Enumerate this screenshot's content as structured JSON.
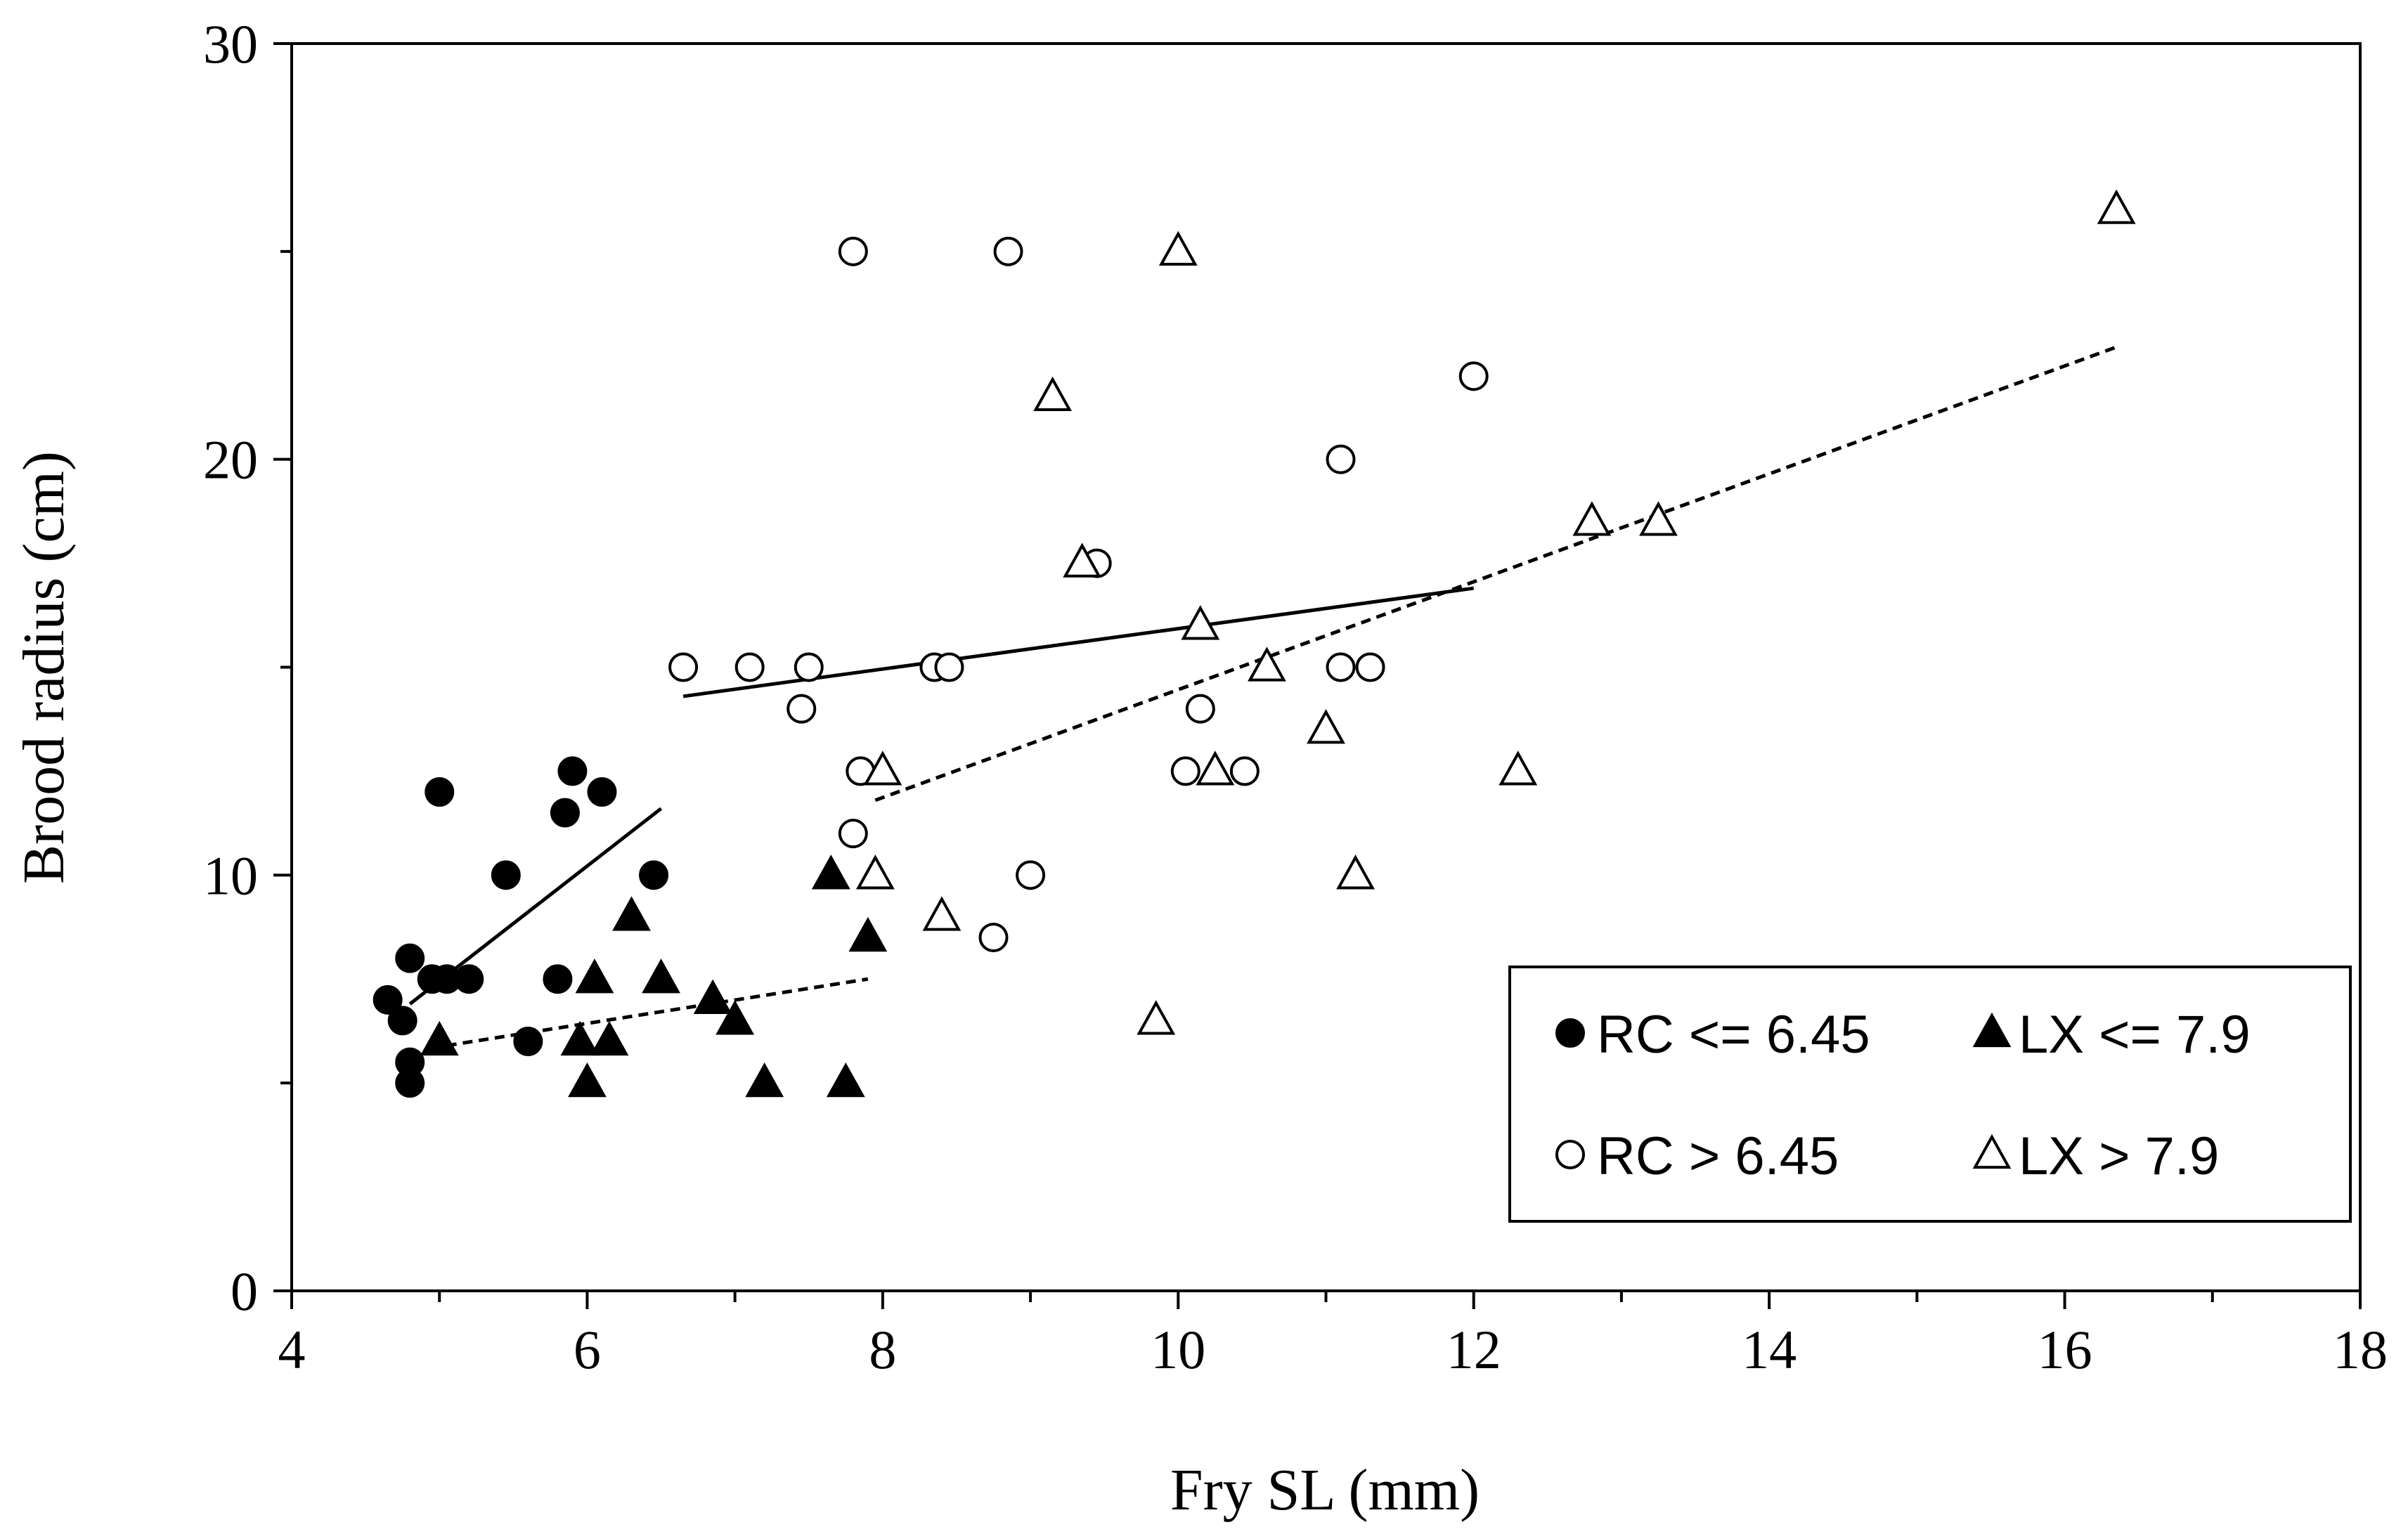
{
  "chart_data": {
    "type": "scatter",
    "title": "",
    "xlabel": "Fry SL (mm)",
    "ylabel": "Brood radius (cm)",
    "xlim": [
      4,
      18
    ],
    "ylim": [
      0,
      30
    ],
    "x_ticks": [
      4,
      6,
      8,
      10,
      12,
      14,
      16,
      18
    ],
    "x_tick_labels": [
      "4",
      "6",
      "8",
      "10",
      "12",
      "14",
      "16",
      "18"
    ],
    "y_ticks": [
      0,
      10,
      20,
      30
    ],
    "y_tick_labels": [
      "0",
      "10",
      "20",
      "30"
    ],
    "grid": false,
    "legend_position": "bottom-right",
    "series": [
      {
        "name": "RC <= 6.45",
        "marker": "circle-filled",
        "points": [
          [
            4.65,
            7
          ],
          [
            4.75,
            6.5
          ],
          [
            4.8,
            8
          ],
          [
            4.8,
            5.5
          ],
          [
            4.8,
            5
          ],
          [
            4.95,
            7.5
          ],
          [
            5.0,
            12
          ],
          [
            5.05,
            7.5
          ],
          [
            5.2,
            7.5
          ],
          [
            5.45,
            10
          ],
          [
            5.6,
            6
          ],
          [
            5.8,
            7.5
          ],
          [
            5.85,
            11.5
          ],
          [
            5.9,
            12.5
          ],
          [
            6.1,
            12
          ],
          [
            6.45,
            10
          ]
        ]
      },
      {
        "name": "LX <= 7.9",
        "marker": "triangle-filled",
        "points": [
          [
            5.0,
            6
          ],
          [
            5.95,
            6
          ],
          [
            6.0,
            5
          ],
          [
            6.05,
            7.5
          ],
          [
            6.15,
            6
          ],
          [
            6.3,
            9
          ],
          [
            6.5,
            7.5
          ],
          [
            6.85,
            7
          ],
          [
            7.0,
            6.5
          ],
          [
            7.2,
            5
          ],
          [
            7.65,
            10
          ],
          [
            7.75,
            5
          ],
          [
            7.9,
            8.5
          ]
        ]
      },
      {
        "name": "RC > 6.45",
        "marker": "circle-open",
        "points": [
          [
            6.65,
            15
          ],
          [
            7.1,
            15
          ],
          [
            7.45,
            14
          ],
          [
            7.5,
            15
          ],
          [
            7.8,
            25
          ],
          [
            7.8,
            11
          ],
          [
            7.85,
            12.5
          ],
          [
            8.35,
            15
          ],
          [
            8.45,
            15
          ],
          [
            8.75,
            8.5
          ],
          [
            8.85,
            25
          ],
          [
            9.0,
            10
          ],
          [
            9.45,
            17.5
          ],
          [
            10.05,
            12.5
          ],
          [
            10.15,
            14
          ],
          [
            10.45,
            12.5
          ],
          [
            11.1,
            15
          ],
          [
            11.1,
            20
          ],
          [
            11.3,
            15
          ],
          [
            12.0,
            22
          ]
        ]
      },
      {
        "name": "LX > 7.9",
        "marker": "triangle-open",
        "points": [
          [
            7.95,
            10
          ],
          [
            8.0,
            12.5
          ],
          [
            8.4,
            9
          ],
          [
            9.15,
            21.5
          ],
          [
            9.35,
            17.5
          ],
          [
            9.85,
            6.5
          ],
          [
            10.0,
            25
          ],
          [
            10.15,
            16
          ],
          [
            10.25,
            12.5
          ],
          [
            10.6,
            15
          ],
          [
            11.0,
            13.5
          ],
          [
            11.2,
            10
          ],
          [
            12.3,
            12.5
          ],
          [
            12.8,
            18.5
          ],
          [
            13.25,
            18.5
          ],
          [
            16.35,
            26
          ]
        ]
      }
    ],
    "trendlines": [
      {
        "series": "RC <= 6.45",
        "style": "solid",
        "x": [
          4.8,
          6.5
        ],
        "y": [
          6.9,
          11.6
        ]
      },
      {
        "series": "LX <= 7.9",
        "style": "dashed",
        "x": [
          5.05,
          7.9
        ],
        "y": [
          5.9,
          7.5
        ]
      },
      {
        "series": "RC > 6.45",
        "style": "solid",
        "x": [
          6.65,
          12.0
        ],
        "y": [
          14.3,
          16.9
        ]
      },
      {
        "series": "LX > 7.9",
        "style": "dashed",
        "x": [
          7.95,
          16.35
        ],
        "y": [
          11.8,
          22.7
        ]
      }
    ]
  }
}
